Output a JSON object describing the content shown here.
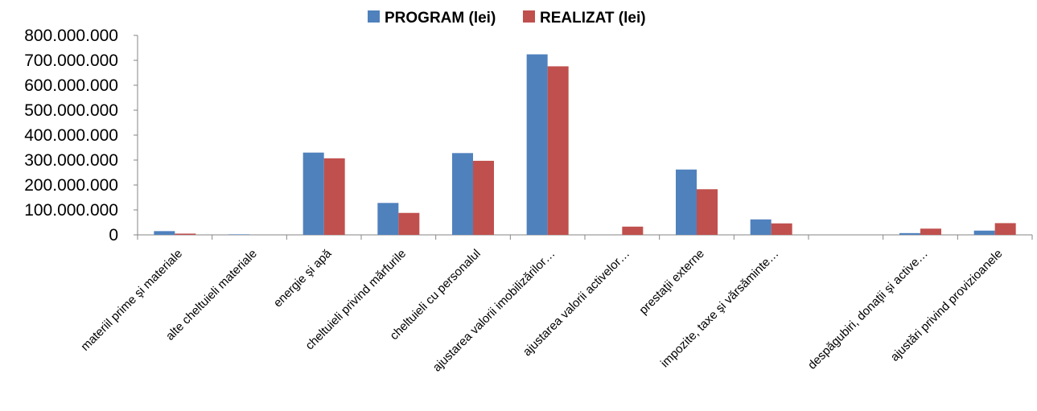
{
  "chart_data": {
    "type": "bar",
    "title": "",
    "xlabel": "",
    "ylabel": "",
    "ylim": [
      0,
      800000000
    ],
    "yticks": [
      0,
      100000000,
      200000000,
      300000000,
      400000000,
      500000000,
      600000000,
      700000000,
      800000000
    ],
    "ytick_labels": [
      "0",
      "100.000.000",
      "200.000.000",
      "300.000.000",
      "400.000.000",
      "500.000.000",
      "600.000.000",
      "700.000.000",
      "800.000.000"
    ],
    "grid": false,
    "legend_position": "top-center",
    "categories": [
      "materiil prime şi materiale",
      "alte cheltuieli materiale",
      "energie şi apă",
      "cheltuieli privind mărfurile",
      "cheltuieli cu personalul",
      "ajustarea valorii imobilizărilor…",
      "ajustarea valorii activelor…",
      "prestaţii externe",
      "impozite, taxe şi vărsăminte…",
      "",
      "despăgubiri, donaţii şi active…",
      "ajustări privind provizioanele"
    ],
    "series": [
      {
        "name": "PROGRAM (lei)",
        "color": "#4f81bd",
        "values": [
          15000000,
          2000000,
          330000000,
          128000000,
          328000000,
          724000000,
          0,
          262000000,
          62000000,
          0,
          7000000,
          17000000
        ]
      },
      {
        "name": "REALIZAT (lei)",
        "color": "#c0504d",
        "values": [
          5000000,
          0,
          307000000,
          88000000,
          297000000,
          676000000,
          33000000,
          183000000,
          46000000,
          0,
          25000000,
          47000000
        ]
      }
    ]
  }
}
